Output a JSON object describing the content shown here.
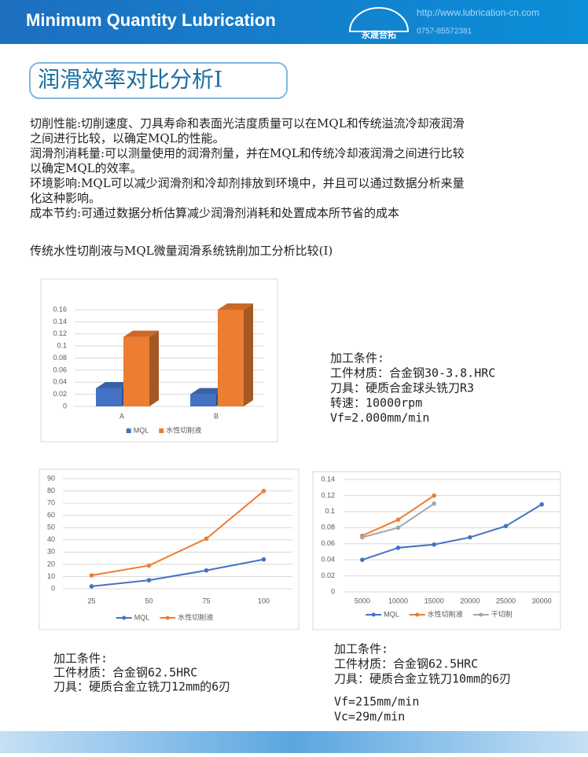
{
  "header": {
    "title": "Minimum Quantity Lubrication",
    "logo": "永晟合拓",
    "url": "http://www.lubrication-cn.com",
    "phone": "0757-85572381"
  },
  "title": "润滑效率对比分析I",
  "paragraphs": [
    [
      "切削性能:切削速度、刀具寿命和表面光洁度质量可以在MQL和传统溢流冷却液润滑",
      "之间进行比较，以确定MQL的性能。"
    ],
    [
      "润滑剂消耗量:可以测量使用的润滑剂量，并在MQL和传统冷却液润滑之间进行比较",
      "以确定MQL的效率。"
    ],
    [
      "环境影响:MQL可以减少润滑剂和冷却剂排放到环境中，并且可以通过数据分析来量",
      "化这种影响。"
    ],
    [
      "成本节约:可通过数据分析估算减少润滑剂消耗和处置成本所节省的成本"
    ]
  ],
  "subtitle": "传统水性切削液与MQL微量润滑系统铣削加工分析比较(I)",
  "chart_data": [
    {
      "type": "bar",
      "categories": [
        "A",
        "B"
      ],
      "series": [
        {
          "name": "MQL",
          "color": "#4472c4",
          "values": [
            0.03,
            0.02
          ]
        },
        {
          "name": "水性切削液",
          "color": "#ed7d31",
          "values": [
            0.115,
            0.16
          ]
        }
      ],
      "ylim": [
        0,
        0.16
      ],
      "yticks": [
        0,
        0.02,
        0.04,
        0.06,
        0.08,
        0.1,
        0.12,
        0.14,
        0.16
      ],
      "grid": true
    },
    {
      "type": "line",
      "categories": [
        "25",
        "50",
        "75",
        "100"
      ],
      "series": [
        {
          "name": "MQL",
          "color": "#4472c4",
          "values": [
            2,
            7,
            15,
            24
          ]
        },
        {
          "name": "水性切削液",
          "color": "#ed7d31",
          "values": [
            11,
            19,
            41,
            80
          ]
        }
      ],
      "ylim": [
        0,
        90
      ],
      "yticks": [
        0,
        10,
        20,
        30,
        40,
        50,
        60,
        70,
        80,
        90
      ],
      "grid": true
    },
    {
      "type": "line",
      "categories": [
        "5000",
        "10000",
        "15000",
        "20000",
        "25000",
        "30000"
      ],
      "series": [
        {
          "name": "MQL",
          "color": "#4472c4",
          "values": [
            0.04,
            0.055,
            0.059,
            0.068,
            0.082,
            0.109
          ]
        },
        {
          "name": "水性切削液",
          "color": "#ed7d31",
          "values": [
            0.07,
            0.09,
            0.12,
            null,
            null,
            null
          ]
        },
        {
          "name": "干切削",
          "color": "#a5a5a5",
          "values": [
            0.068,
            0.08,
            0.11,
            null,
            null,
            null
          ]
        }
      ],
      "ylim": [
        0,
        0.14
      ],
      "yticks": [
        0,
        0.02,
        0.04,
        0.06,
        0.08,
        0.1,
        0.12,
        0.14
      ],
      "grid": true
    }
  ],
  "conditions": [
    [
      "加工条件:",
      "工件材质：合金钢30-3.8.HRC",
      "刀具：硬质合金球头铣刀R3",
      "转速：10000rpm",
      "Vf=2.000mm/min"
    ],
    [
      "加工条件:",
      "工件材质：合金钢62.5HRC",
      "刀具：硬质合金立铣刀12mm的6刃"
    ],
    [
      "加工条件:",
      "工件材质：合金钢62.5HRC",
      "刀具：硬质合金立铣刀10mm的6刃",
      "Vf=215mm/min",
      "Vc=29m/min"
    ]
  ]
}
